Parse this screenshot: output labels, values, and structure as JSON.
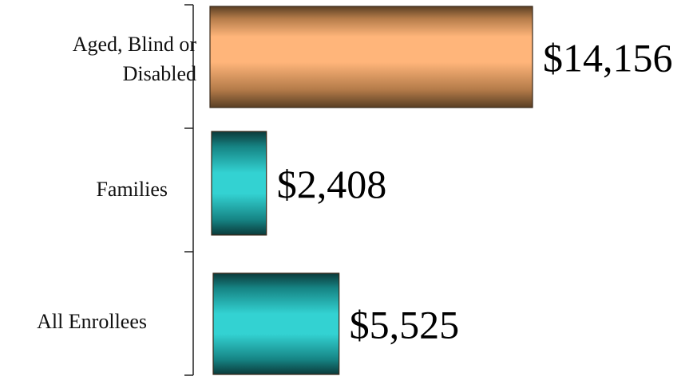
{
  "chart_data": {
    "type": "bar",
    "orientation": "horizontal",
    "categories": [
      "Aged, Blind or Disabled",
      "Families",
      "All Enrollees"
    ],
    "category_lines": [
      [
        "Aged, Blind or",
        "Disabled"
      ],
      [
        "Families"
      ],
      [
        "All Enrollees"
      ]
    ],
    "values": [
      14156,
      2408,
      5525
    ],
    "value_labels": [
      "$14,156",
      "$2,408",
      "$5,525"
    ],
    "bar_colors": [
      "#f2a76a",
      "#2ec8c8",
      "#2ec8c8"
    ],
    "title": "",
    "xlabel": "",
    "ylabel": "",
    "grid": false,
    "legend": false
  }
}
